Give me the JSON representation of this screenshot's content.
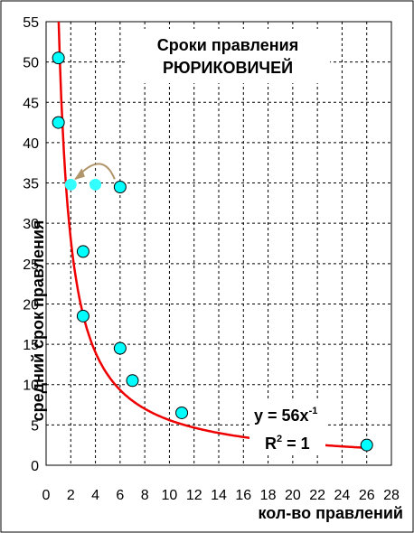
{
  "chart_data": {
    "type": "scatter",
    "title_line1": "Сроки правления",
    "title_line2": "РЮРИКОВИЧЕЙ",
    "xlabel": "кол-во правлений",
    "ylabel": "средний срок правления",
    "xlim": [
      0,
      28
    ],
    "ylim": [
      0,
      55
    ],
    "xticks": [
      0,
      2,
      4,
      6,
      8,
      10,
      12,
      14,
      16,
      18,
      20,
      22,
      24,
      26,
      28
    ],
    "yticks": [
      0,
      5,
      10,
      15,
      20,
      25,
      30,
      35,
      40,
      45,
      50,
      55
    ],
    "grid": true,
    "series": [
      {
        "marker": "circle-outlined",
        "color": "#00ffff",
        "points": [
          {
            "x": 1,
            "y": 50.5
          },
          {
            "x": 1,
            "y": 42.5
          },
          {
            "x": 6,
            "y": 34.5
          },
          {
            "x": 3,
            "y": 26.5
          },
          {
            "x": 3,
            "y": 18.5
          },
          {
            "x": 6,
            "y": 14.5
          },
          {
            "x": 7,
            "y": 10.5
          },
          {
            "x": 11,
            "y": 6.5
          },
          {
            "x": 26,
            "y": 2.5
          }
        ]
      },
      {
        "marker": "circle-plain",
        "color": "#33ffff",
        "points": [
          {
            "x": 2,
            "y": 34.8
          },
          {
            "x": 4,
            "y": 34.8
          }
        ]
      }
    ],
    "trendline": {
      "color": "#ee0000",
      "coefficient": 56,
      "exponent": -1,
      "x_range": [
        1,
        26
      ],
      "equation_text": "y = 56x",
      "equation_exp": "-1",
      "r2_prefix": "R",
      "r2_exp": "2",
      "r2_suffix": " = 1"
    },
    "arrow_annotation": {
      "color": "#b0946a",
      "from": {
        "x": 6,
        "y": 34.8
      },
      "to": {
        "x": 2,
        "y": 34.8
      }
    }
  }
}
